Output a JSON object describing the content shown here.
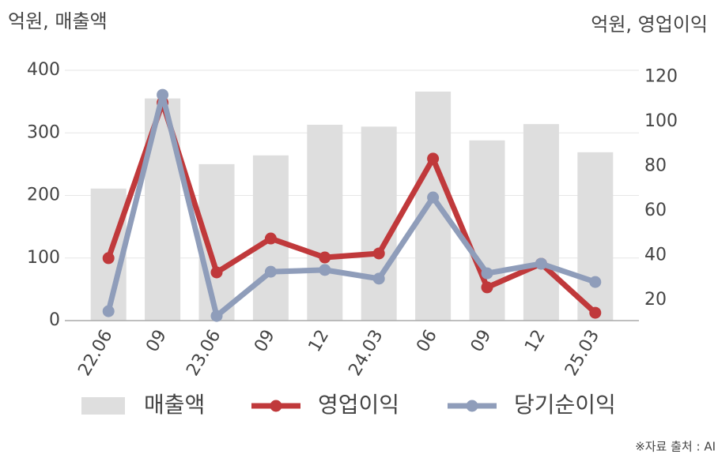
{
  "chart_data": {
    "type": "bar-line",
    "left_unit_label": "억원, 매출액",
    "right_unit_label": "억원, 영업이익",
    "source": "※자료 출처 : AI",
    "categories": [
      "22.06",
      "09",
      "23.06",
      "09",
      "12",
      "24.03",
      "06",
      "09",
      "12",
      "25.03"
    ],
    "series": [
      {
        "name": "매출액",
        "color": "#dedede",
        "type": "bar",
        "axis": "y",
        "values": [
          211,
          355,
          250,
          264,
          313,
          310,
          366,
          288,
          314,
          269
        ]
      },
      {
        "name": "영업이익",
        "color": "#c0393b",
        "type": "line",
        "axis": "y2",
        "values": [
          38.8,
          108.5,
          32.4,
          47.6,
          39.1,
          40.9,
          83.4,
          25.7,
          36.3,
          14.3
        ]
      },
      {
        "name": "당기순이익",
        "color": "#8f9dba",
        "type": "line",
        "axis": "y2",
        "values": [
          15,
          112,
          12.9,
          32.7,
          33.5,
          29.6,
          66,
          32,
          36.3,
          28.1
        ]
      }
    ],
    "ylim": [
      0,
      400
    ],
    "yticks": [
      0,
      100,
      200,
      300,
      400
    ],
    "y2lim": [
      10.8,
      123
    ],
    "y2ticks": [
      20,
      40,
      60,
      80,
      100,
      120
    ],
    "grid": true
  }
}
